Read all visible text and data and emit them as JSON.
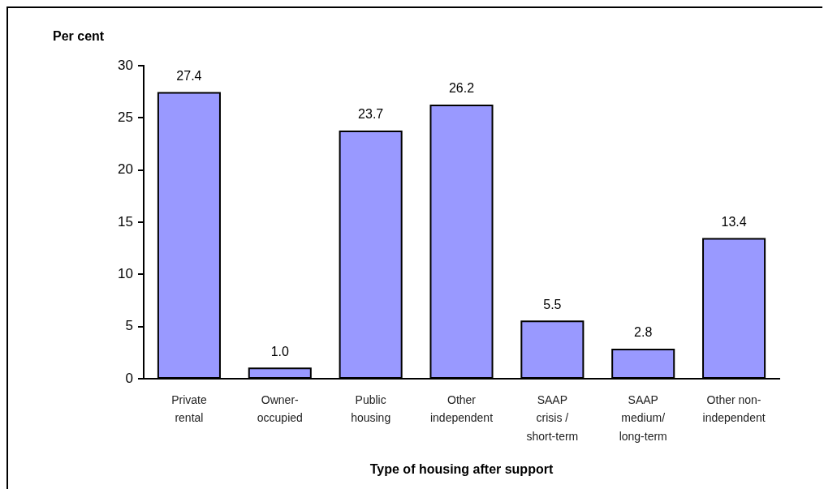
{
  "chart_data": {
    "type": "bar",
    "xlabel": "Type of housing after support",
    "ylabel": "Per cent",
    "categories": [
      "Private\nrental",
      "Owner-\noccupied",
      "Public\nhousing",
      "Other\nindependent",
      "SAAP\ncrisis /\nshort-term",
      "SAAP\nmedium/\nlong-term",
      "Other non-\nindependent"
    ],
    "values": [
      27.4,
      1.0,
      23.7,
      26.2,
      5.5,
      2.8,
      13.4
    ],
    "value_labels": [
      "27.4",
      "1.0",
      "23.7",
      "26.2",
      "5.5",
      "2.8",
      "13.4"
    ],
    "color": "#9999ff",
    "ylim": [
      0,
      30
    ],
    "yticks": [
      0,
      5,
      10,
      15,
      20,
      25,
      30
    ]
  }
}
